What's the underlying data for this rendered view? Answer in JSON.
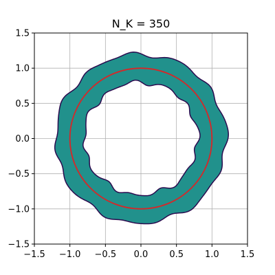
{
  "chart_data": {
    "type": "area",
    "title": "N_K = 350",
    "xlabel": "",
    "ylabel": "",
    "xlim": [
      -1.5,
      1.5
    ],
    "ylim": [
      -1.5,
      1.5
    ],
    "grid": true,
    "x_ticks": [
      -1.5,
      -1.0,
      -0.5,
      0.0,
      0.5,
      1.0,
      1.5
    ],
    "y_ticks": [
      -1.5,
      -1.0,
      -0.5,
      0.0,
      0.5,
      1.0,
      1.5
    ],
    "x_tick_labels": [
      "−1.5",
      "−1.0",
      "−0.5",
      "0.0",
      "0.5",
      "1.0",
      "1.5"
    ],
    "y_tick_labels": [
      "−1.5",
      "−1.0",
      "−0.5",
      "0.0",
      "0.5",
      "1.0",
      "1.5"
    ],
    "shapes": [
      {
        "kind": "annulus",
        "fill": "#21918c",
        "edge_color": "#2a0a4e",
        "outer_radius": 1.2,
        "inner_radius": 0.8,
        "boundary_perturbations": [
          {
            "mode": 12,
            "amplitude": 0.025,
            "phase": 0.3
          },
          {
            "mode": 7,
            "amplitude": 0.012,
            "phase": 1.1
          },
          {
            "mode": 19,
            "amplitude": 0.008,
            "phase": 2.0
          }
        ]
      },
      {
        "kind": "circle",
        "center": [
          0,
          0
        ],
        "radius": 1.0,
        "color": "#d62728"
      }
    ]
  },
  "colors": {
    "grid": "#b0b0b0",
    "axes": "#000000",
    "background": "#ffffff"
  }
}
